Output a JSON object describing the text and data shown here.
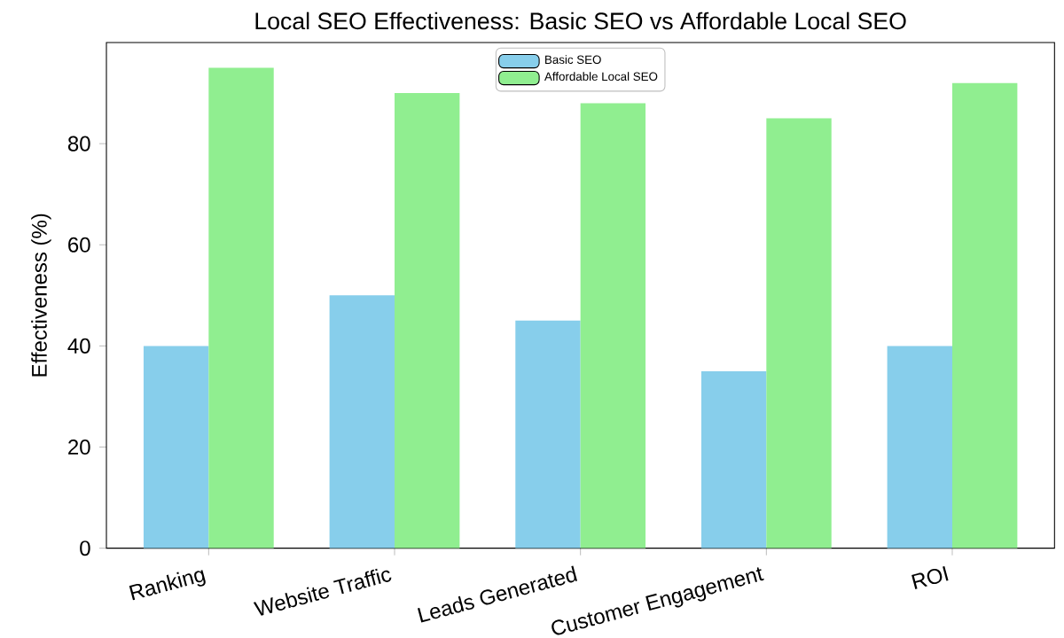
{
  "chart_data": {
    "type": "bar",
    "title": "Local SEO Effectiveness: Basic SEO vs Affordable Local SEO",
    "ylabel": "Effectiveness (%)",
    "categories": [
      "Ranking",
      "Website Traffic",
      "Leads Generated",
      "Customer Engagement",
      "ROI"
    ],
    "series": [
      {
        "name": "Basic SEO",
        "color": "#87ceeb",
        "values": [
          40,
          50,
          45,
          35,
          40
        ]
      },
      {
        "name": "Affordable Local SEO",
        "color": "#90ee90",
        "values": [
          95,
          90,
          88,
          85,
          92
        ]
      }
    ],
    "ylim": [
      0,
      100
    ],
    "yticks": [
      0,
      20,
      40,
      60,
      80
    ],
    "legend": "top",
    "grid": false
  }
}
